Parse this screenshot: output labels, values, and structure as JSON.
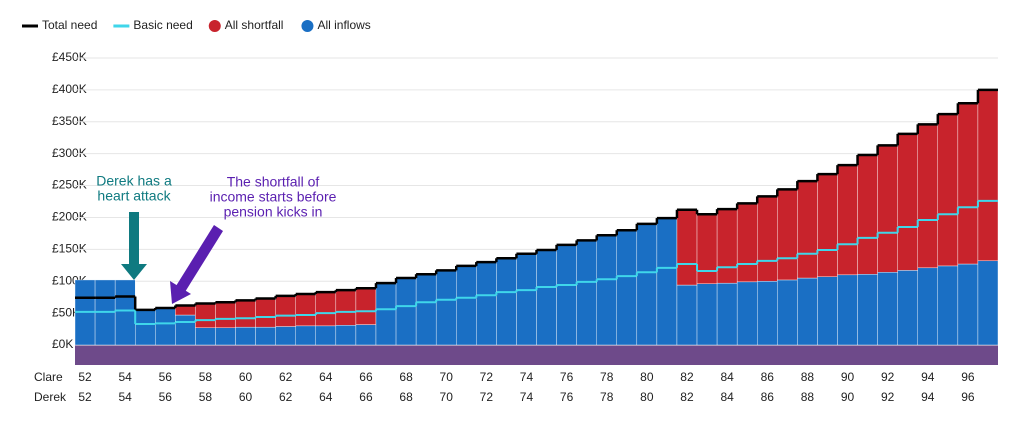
{
  "chart_data": {
    "type": "bar",
    "stacked": true,
    "categories": [
      "52",
      null,
      "54",
      null,
      "56",
      null,
      "58",
      null,
      "60",
      null,
      "62",
      null,
      "64",
      null,
      "66",
      null,
      "68",
      null,
      "70",
      null,
      "72",
      null,
      "74",
      null,
      "76",
      null,
      "78",
      null,
      "80",
      null,
      "82",
      null,
      "84",
      null,
      "86",
      null,
      "88",
      null,
      "90",
      null,
      "92",
      null,
      "94",
      null,
      "96",
      null
    ],
    "category_rows": [
      {
        "name": "Clare",
        "labels": [
          "52",
          null,
          "54",
          null,
          "56",
          null,
          "58",
          null,
          "60",
          null,
          "62",
          null,
          "64",
          null,
          "66",
          null,
          "68",
          null,
          "70",
          null,
          "72",
          null,
          "74",
          null,
          "76",
          null,
          "78",
          null,
          "80",
          null,
          "82",
          null,
          "84",
          null,
          "86",
          null,
          "88",
          null,
          "90",
          null,
          "92",
          null,
          "94",
          null,
          "96",
          null
        ]
      },
      {
        "name": "Derek",
        "labels": [
          "52",
          null,
          "54",
          null,
          "56",
          null,
          "58",
          null,
          "60",
          null,
          "62",
          null,
          "64",
          null,
          "66",
          null,
          "68",
          null,
          "70",
          null,
          "72",
          null,
          "74",
          null,
          "76",
          null,
          "78",
          null,
          "80",
          null,
          "82",
          null,
          "84",
          null,
          "86",
          null,
          "88",
          null,
          "90",
          null,
          "92",
          null,
          "94",
          null,
          "96",
          null
        ]
      }
    ],
    "lines": [
      {
        "name": "Total need",
        "color": "#000000",
        "values": [
          74,
          74,
          76,
          55,
          58,
          62,
          65,
          67,
          70,
          73,
          77,
          80,
          83,
          86,
          89,
          97,
          105,
          111,
          117,
          124,
          130,
          136,
          143,
          149,
          157,
          164,
          172,
          180,
          190,
          199,
          212,
          205,
          213,
          222,
          233,
          244,
          257,
          268,
          282,
          298,
          313,
          331,
          346,
          362,
          379,
          400
        ]
      },
      {
        "name": "Basic need",
        "color": "#3fd6ea",
        "values": [
          52,
          52,
          54,
          33,
          34,
          36,
          39,
          41,
          42,
          44,
          46,
          47,
          50,
          52,
          53,
          56,
          61,
          67,
          71,
          74,
          78,
          83,
          86,
          91,
          94,
          99,
          103,
          108,
          114,
          121,
          127,
          116,
          122,
          127,
          132,
          136,
          143,
          149,
          158,
          168,
          176,
          185,
          196,
          205,
          216,
          226
        ]
      }
    ],
    "series": [
      {
        "name": "All shortfall",
        "color": "#c8232c",
        "values": [
          0,
          0,
          0,
          0,
          0,
          15,
          38,
          40,
          42,
          45,
          48,
          50,
          53,
          55,
          57,
          0,
          0,
          0,
          0,
          0,
          0,
          0,
          0,
          0,
          0,
          0,
          0,
          0,
          0,
          0,
          118,
          109,
          116,
          123,
          133,
          142,
          152,
          161,
          172,
          187,
          199,
          214,
          225,
          238,
          252,
          268
        ]
      },
      {
        "name": "All inflows",
        "color": "#1a6fc4",
        "values": [
          102,
          102,
          102,
          56,
          59,
          47,
          27,
          27,
          28,
          28,
          29,
          30,
          30,
          31,
          32,
          97,
          105,
          111,
          117,
          124,
          130,
          136,
          143,
          149,
          157,
          164,
          172,
          180,
          190,
          199,
          94,
          96,
          97,
          99,
          100,
          102,
          105,
          107,
          110,
          111,
          114,
          117,
          121,
          124,
          127,
          132
        ]
      }
    ],
    "ylim": [
      0,
      450
    ],
    "yticks": [
      {
        "value": 0,
        "label": "£0K"
      },
      {
        "value": 50,
        "label": "£50K"
      },
      {
        "value": 100,
        "label": "£100K"
      },
      {
        "value": 150,
        "label": "£150K"
      },
      {
        "value": 200,
        "label": "£200K"
      },
      {
        "value": 250,
        "label": "£250K"
      },
      {
        "value": 300,
        "label": "£300K"
      },
      {
        "value": 350,
        "label": "£350K"
      },
      {
        "value": 400,
        "label": "£400K"
      },
      {
        "value": 450,
        "label": "£450K"
      }
    ],
    "grid": true,
    "annotations": [
      {
        "lines": [
          "Derek has a",
          "heart attack"
        ]
      },
      {
        "lines": [
          "The shortfall of",
          "income starts before",
          "pension kicks in"
        ]
      }
    ]
  }
}
